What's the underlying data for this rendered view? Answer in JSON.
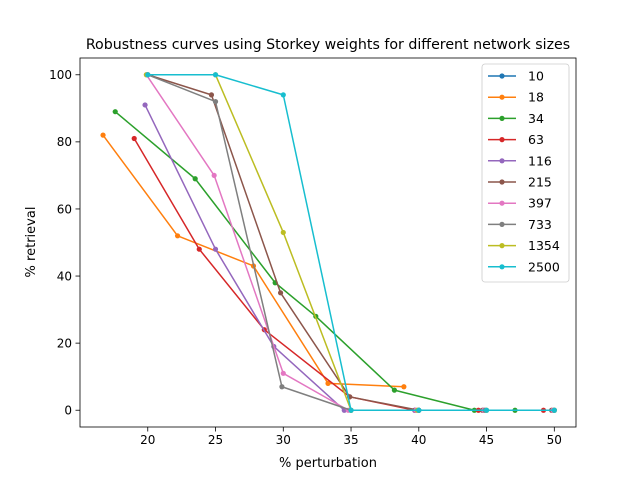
{
  "chart_data": {
    "type": "line",
    "title": "Robustness curves using Storkey weights for different network sizes",
    "xlabel": "% perturbation",
    "ylabel": "% retrieval",
    "xlim": [
      15.0,
      51.6
    ],
    "ylim": [
      -5,
      105
    ],
    "xticks": [
      20,
      25,
      30,
      35,
      40,
      45,
      50
    ],
    "yticks": [
      0,
      20,
      40,
      60,
      80,
      100
    ],
    "grid": false,
    "legend_position": "top-right",
    "series": [
      {
        "name": "10",
        "color": "#1f77b4",
        "points": [
          [
            40,
            0
          ],
          [
            50,
            0
          ]
        ]
      },
      {
        "name": "18",
        "color": "#ff7f0e",
        "points": [
          [
            16.7,
            82
          ],
          [
            22.2,
            52
          ],
          [
            27.8,
            43
          ],
          [
            33.3,
            8
          ],
          [
            38.9,
            7
          ]
        ]
      },
      {
        "name": "34",
        "color": "#2ca02c",
        "points": [
          [
            17.6,
            89
          ],
          [
            23.5,
            69
          ],
          [
            29.4,
            38
          ],
          [
            32.4,
            28
          ],
          [
            38.2,
            6
          ],
          [
            44.1,
            0
          ],
          [
            47.1,
            0
          ],
          [
            50.0,
            0
          ]
        ]
      },
      {
        "name": "63",
        "color": "#d62728",
        "points": [
          [
            19.0,
            81
          ],
          [
            23.8,
            48
          ],
          [
            28.6,
            24
          ],
          [
            34.9,
            4
          ],
          [
            39.7,
            0
          ],
          [
            44.4,
            0
          ],
          [
            49.2,
            0
          ]
        ]
      },
      {
        "name": "116",
        "color": "#9467bd",
        "points": [
          [
            19.8,
            91
          ],
          [
            25.0,
            48
          ],
          [
            29.3,
            19
          ],
          [
            34.5,
            0
          ],
          [
            39.7,
            0
          ],
          [
            44.8,
            0
          ],
          [
            50.0,
            0
          ]
        ]
      },
      {
        "name": "215",
        "color": "#8c564b",
        "points": [
          [
            20.0,
            100
          ],
          [
            24.7,
            94
          ],
          [
            29.8,
            35
          ],
          [
            34.9,
            4
          ],
          [
            40.0,
            0
          ],
          [
            44.7,
            0
          ],
          [
            49.8,
            0
          ]
        ]
      },
      {
        "name": "397",
        "color": "#e377c2",
        "points": [
          [
            19.9,
            100
          ],
          [
            24.9,
            70
          ],
          [
            30.0,
            11
          ],
          [
            34.8,
            0
          ],
          [
            39.8,
            0
          ],
          [
            44.8,
            0
          ],
          [
            49.9,
            0
          ]
        ]
      },
      {
        "name": "733",
        "color": "#7f7f7f",
        "points": [
          [
            20.0,
            100
          ],
          [
            25.0,
            92
          ],
          [
            29.9,
            7
          ],
          [
            35.0,
            0
          ],
          [
            40.0,
            0
          ],
          [
            44.9,
            0
          ],
          [
            50.0,
            0
          ]
        ]
      },
      {
        "name": "1354",
        "color": "#bcbd22",
        "points": [
          [
            19.9,
            100
          ],
          [
            25.0,
            100
          ],
          [
            30.0,
            53
          ],
          [
            35.0,
            0
          ],
          [
            39.9,
            0
          ],
          [
            45.0,
            0
          ],
          [
            50.0,
            0
          ]
        ]
      },
      {
        "name": "2500",
        "color": "#17becf",
        "points": [
          [
            20.0,
            100
          ],
          [
            25.0,
            100
          ],
          [
            30.0,
            94
          ],
          [
            35.0,
            0
          ],
          [
            40.0,
            0
          ],
          [
            45.0,
            0
          ],
          [
            50.0,
            0
          ]
        ]
      }
    ]
  }
}
